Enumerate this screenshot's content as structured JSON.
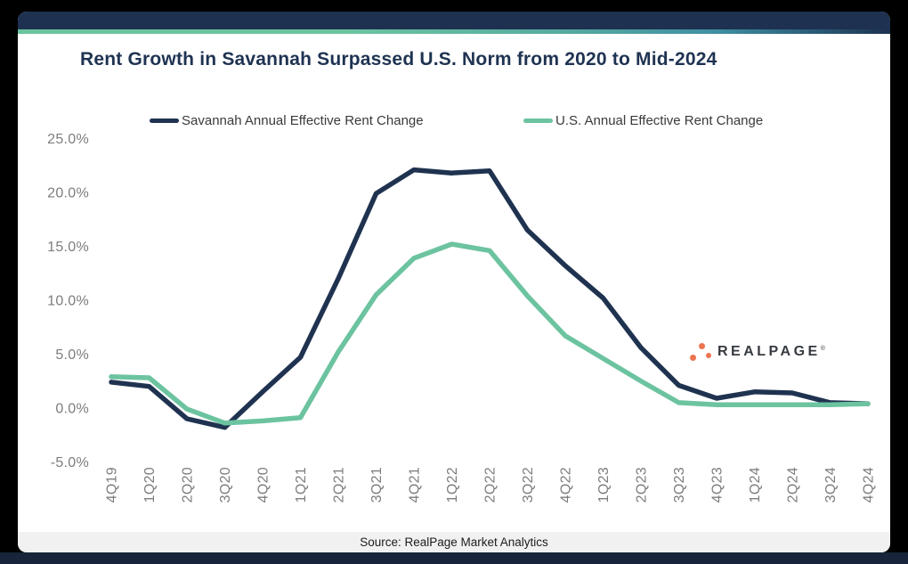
{
  "title": "Rent Growth in Savannah Surpassed U.S. Norm from 2020 to Mid-2024",
  "legend": [
    {
      "label": "Savannah Annual Effective Rent Change",
      "color": "#1f3350"
    },
    {
      "label": "U.S. Annual Effective Rent Change",
      "color": "#6cc3a0"
    }
  ],
  "chart_data": {
    "type": "line",
    "title": "Rent Growth in Savannah Surpassed U.S. Norm from 2020 to Mid-2024",
    "categories": [
      "4Q19",
      "1Q20",
      "2Q20",
      "3Q20",
      "4Q20",
      "1Q21",
      "2Q21",
      "3Q21",
      "4Q21",
      "1Q22",
      "2Q22",
      "3Q22",
      "4Q22",
      "1Q23",
      "2Q23",
      "3Q23",
      "4Q23",
      "1Q24",
      "2Q24",
      "3Q24",
      "4Q24"
    ],
    "series": [
      {
        "name": "Savannah Annual Effective Rent Change",
        "color": "#1f3350",
        "values": [
          2.4,
          2.0,
          -1.0,
          -1.8,
          1.5,
          4.7,
          12.0,
          19.9,
          22.1,
          21.8,
          22.0,
          16.5,
          13.2,
          10.2,
          5.6,
          2.1,
          0.9,
          1.5,
          1.4,
          0.5,
          0.4
        ]
      },
      {
        "name": "U.S. Annual Effective Rent Change",
        "color": "#6cc3a0",
        "values": [
          2.9,
          2.8,
          -0.1,
          -1.4,
          -1.2,
          -0.9,
          5.2,
          10.5,
          13.9,
          15.2,
          14.6,
          10.4,
          6.7,
          4.6,
          2.5,
          0.5,
          0.3,
          0.3,
          0.3,
          0.3,
          0.4
        ]
      }
    ],
    "ylabel_ticks": [
      "25.0%",
      "20.0%",
      "15.0%",
      "10.0%",
      "5.0%",
      "0.0%",
      "-5.0%"
    ],
    "ylim": [
      -5,
      25
    ],
    "xlabel": "",
    "ylabel": "",
    "grid": false,
    "legend_position": "top",
    "units": "percent"
  },
  "logo": {
    "text": "REALPAGE",
    "mark": "®",
    "dot_color": "#ee7450",
    "text_color": "#363b41"
  },
  "footer": {
    "source": "Source: RealPage Market Analytics"
  },
  "colors": {
    "header_bar": "#1e3150",
    "accent_green": "#6cc3a0",
    "title_navy": "#1f3352",
    "axis_gray": "#7d7d7d",
    "page_background": "#000000",
    "footer_background": "#f1f1f1"
  }
}
